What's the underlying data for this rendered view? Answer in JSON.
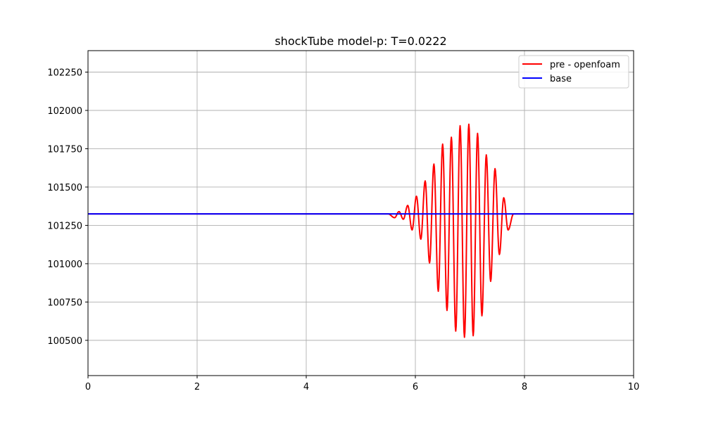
{
  "chart_data": {
    "type": "line",
    "title": "shockTube model-p: T=0.0222",
    "xlabel": "",
    "ylabel": "",
    "xlim": [
      0,
      10
    ],
    "ylim": [
      100270,
      102390
    ],
    "xticks": [
      0,
      2,
      4,
      6,
      8,
      10
    ],
    "yticks": [
      100500,
      100750,
      101000,
      101250,
      101500,
      101750,
      102000,
      102250
    ],
    "grid": true,
    "legend": "top-right",
    "series": [
      {
        "name": "pre - openfoam",
        "color": "#ff0000",
        "baseline": 101325,
        "x": [
          0,
          5.0,
          5.5,
          5.62,
          5.7,
          5.78,
          5.86,
          5.94,
          6.02,
          6.1,
          6.18,
          6.26,
          6.34,
          6.42,
          6.5,
          6.58,
          6.66,
          6.74,
          6.82,
          6.9,
          6.98,
          7.06,
          7.14,
          7.22,
          7.3,
          7.38,
          7.46,
          7.54,
          7.62,
          7.7,
          7.8,
          10
        ],
        "y": [
          101325,
          101325,
          101325,
          101300,
          101340,
          101290,
          101380,
          101220,
          101440,
          101160,
          101540,
          101005,
          101650,
          100820,
          101780,
          100695,
          101825,
          100560,
          101900,
          100520,
          101910,
          100530,
          101850,
          100660,
          101710,
          100885,
          101620,
          101060,
          101430,
          101220,
          101325,
          101325
        ]
      },
      {
        "name": "base",
        "color": "#0000ff",
        "x": [
          0,
          10
        ],
        "y": [
          101325,
          101325
        ]
      }
    ]
  }
}
